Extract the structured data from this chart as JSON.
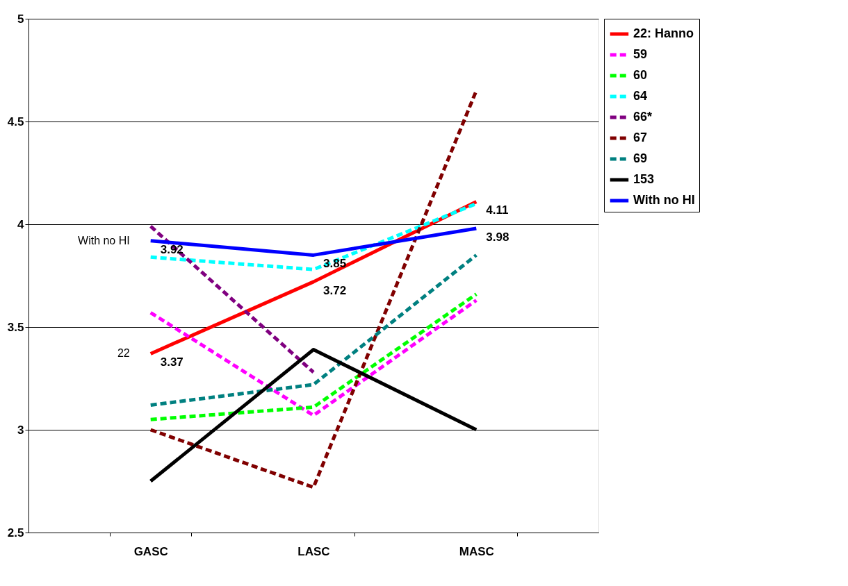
{
  "chart_data": {
    "type": "line",
    "categories": [
      "GASC",
      "LASC",
      "MASC"
    ],
    "ylim": [
      2.5,
      5
    ],
    "yticks": [
      2.5,
      3,
      3.5,
      4,
      4.5,
      5
    ],
    "grid": "y",
    "legend": "right",
    "series": [
      {
        "name": "22: Hanno",
        "color": "#ff0000",
        "line_style": "solid",
        "values": [
          3.37,
          3.72,
          4.11
        ],
        "value_labels": [
          "3.37",
          "3.72",
          "4.11"
        ]
      },
      {
        "name": "59",
        "color": "#ff00ff",
        "line_style": "dashed",
        "values": [
          3.57,
          3.07,
          3.63
        ]
      },
      {
        "name": "60",
        "color": "#00ff00",
        "line_style": "dashed",
        "values": [
          3.05,
          3.11,
          3.66
        ]
      },
      {
        "name": "64",
        "color": "#00ffff",
        "line_style": "dashed",
        "values": [
          3.84,
          3.78,
          4.1
        ]
      },
      {
        "name": "66*",
        "color": "#800080",
        "line_style": "dashed",
        "values": [
          3.99,
          3.28,
          null
        ]
      },
      {
        "name": "67",
        "color": "#800000",
        "line_style": "dashed",
        "values": [
          3.0,
          2.72,
          4.65
        ]
      },
      {
        "name": "69",
        "color": "#008080",
        "line_style": "dashed",
        "values": [
          3.12,
          3.22,
          3.85
        ]
      },
      {
        "name": "153",
        "color": "#000000",
        "line_style": "solid",
        "values": [
          2.75,
          3.39,
          3.0
        ]
      },
      {
        "name": "With no HI",
        "color": "#0000ff",
        "line_style": "solid",
        "values": [
          3.92,
          3.85,
          3.98
        ],
        "value_labels": [
          "3.92",
          "3.85",
          "3.98"
        ]
      }
    ],
    "annotations": [
      {
        "text": "With no HI",
        "x": "GASC",
        "y": 3.92
      },
      {
        "text": "22",
        "x": "GASC",
        "y": 3.37
      }
    ]
  }
}
